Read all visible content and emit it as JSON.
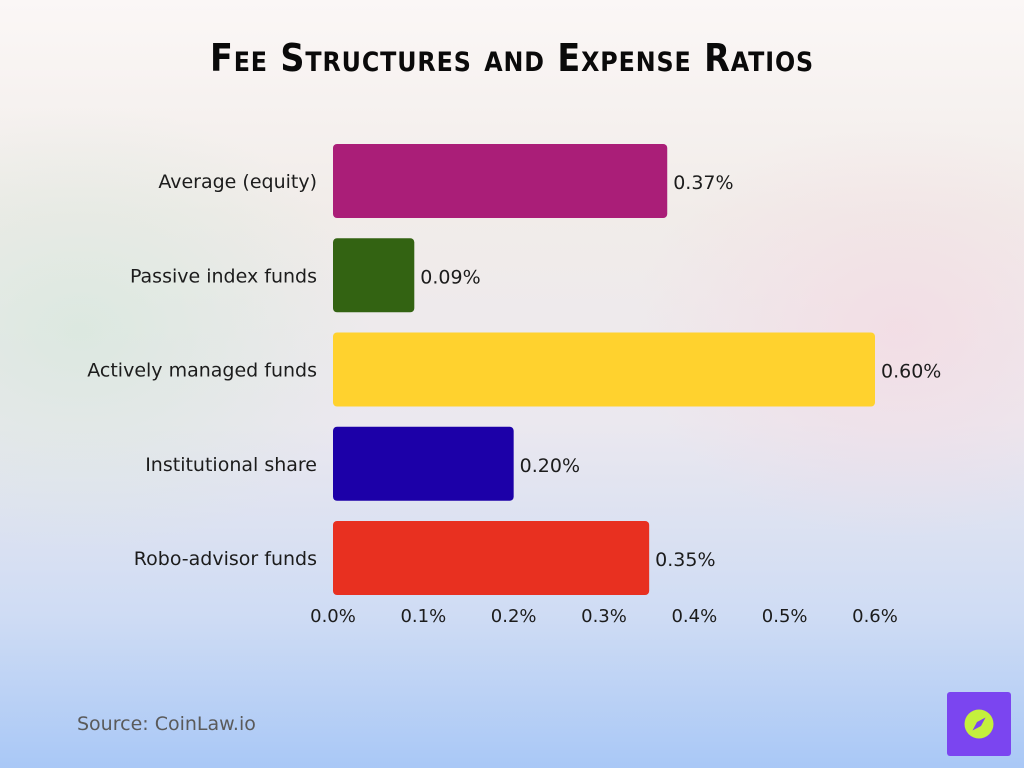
{
  "chart_data": {
    "type": "bar",
    "orientation": "horizontal",
    "title": "Fee Structures and Expense Ratios",
    "categories": [
      "Average (equity)",
      "Passive index funds",
      "Actively managed funds",
      "Institutional share",
      "Robo-advisor funds"
    ],
    "values": [
      0.37,
      0.09,
      0.6,
      0.2,
      0.35
    ],
    "value_labels": [
      "0.37%",
      "0.09%",
      "0.60%",
      "0.20%",
      "0.35%"
    ],
    "colors": [
      "#aa1e78",
      "#336312",
      "#ffd22e",
      "#1c00a8",
      "#e83020"
    ],
    "xlim": [
      0,
      0.6
    ],
    "xticks": [
      0,
      0.1,
      0.2,
      0.3,
      0.4,
      0.5,
      0.6
    ],
    "xtick_labels": [
      "0.0%",
      "0.1%",
      "0.2%",
      "0.3%",
      "0.4%",
      "0.5%",
      "0.6%"
    ],
    "xlabel": "",
    "ylabel": "",
    "grid": false,
    "legend": "none"
  },
  "footer": {
    "source": "Source: CoinLaw.io"
  },
  "logo": {
    "icon": "compass-icon",
    "background": "#7b45f0",
    "accent": "#c4f03c"
  }
}
